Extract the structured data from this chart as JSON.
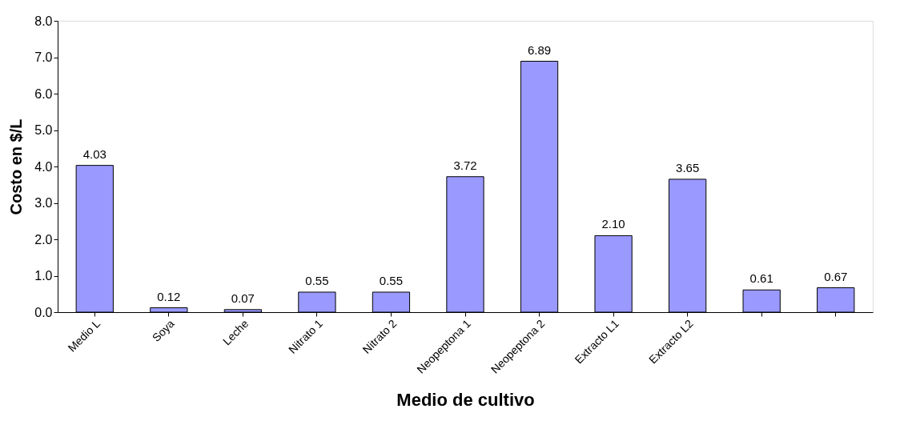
{
  "chart_data": {
    "type": "bar",
    "xlabel": "Medio de cultivo",
    "ylabel": "Costo en $/L",
    "categories": [
      "Medio L",
      "Soya",
      "Leche",
      "Nitrato 1",
      "Nitrato 2",
      "Neopeptona 1",
      "Neopeptona 2",
      "Extracto L1",
      "Extracto L2",
      null,
      null
    ],
    "values": [
      4.03,
      0.12,
      0.07,
      0.55,
      0.55,
      3.72,
      6.89,
      2.1,
      3.65,
      0.61,
      0.67
    ],
    "value_labels": [
      "4.03",
      "0.12",
      "0.07",
      "0.55",
      "0.55",
      "3.72",
      "6.89",
      "2.10",
      "3.65",
      "0.61",
      "0.67"
    ],
    "color": "#9999ff",
    "ylim": [
      0,
      8
    ],
    "yticks": [
      {
        "value": 0,
        "label": "0.0"
      },
      {
        "value": 1,
        "label": "1.0"
      },
      {
        "value": 2,
        "label": "2.0"
      },
      {
        "value": 3,
        "label": "3.0"
      },
      {
        "value": 4,
        "label": "4.0"
      },
      {
        "value": 5,
        "label": "5.0"
      },
      {
        "value": 6,
        "label": "6.0"
      },
      {
        "value": 7,
        "label": "7.0"
      },
      {
        "value": 8,
        "label": "8.0"
      }
    ],
    "grid": false
  }
}
